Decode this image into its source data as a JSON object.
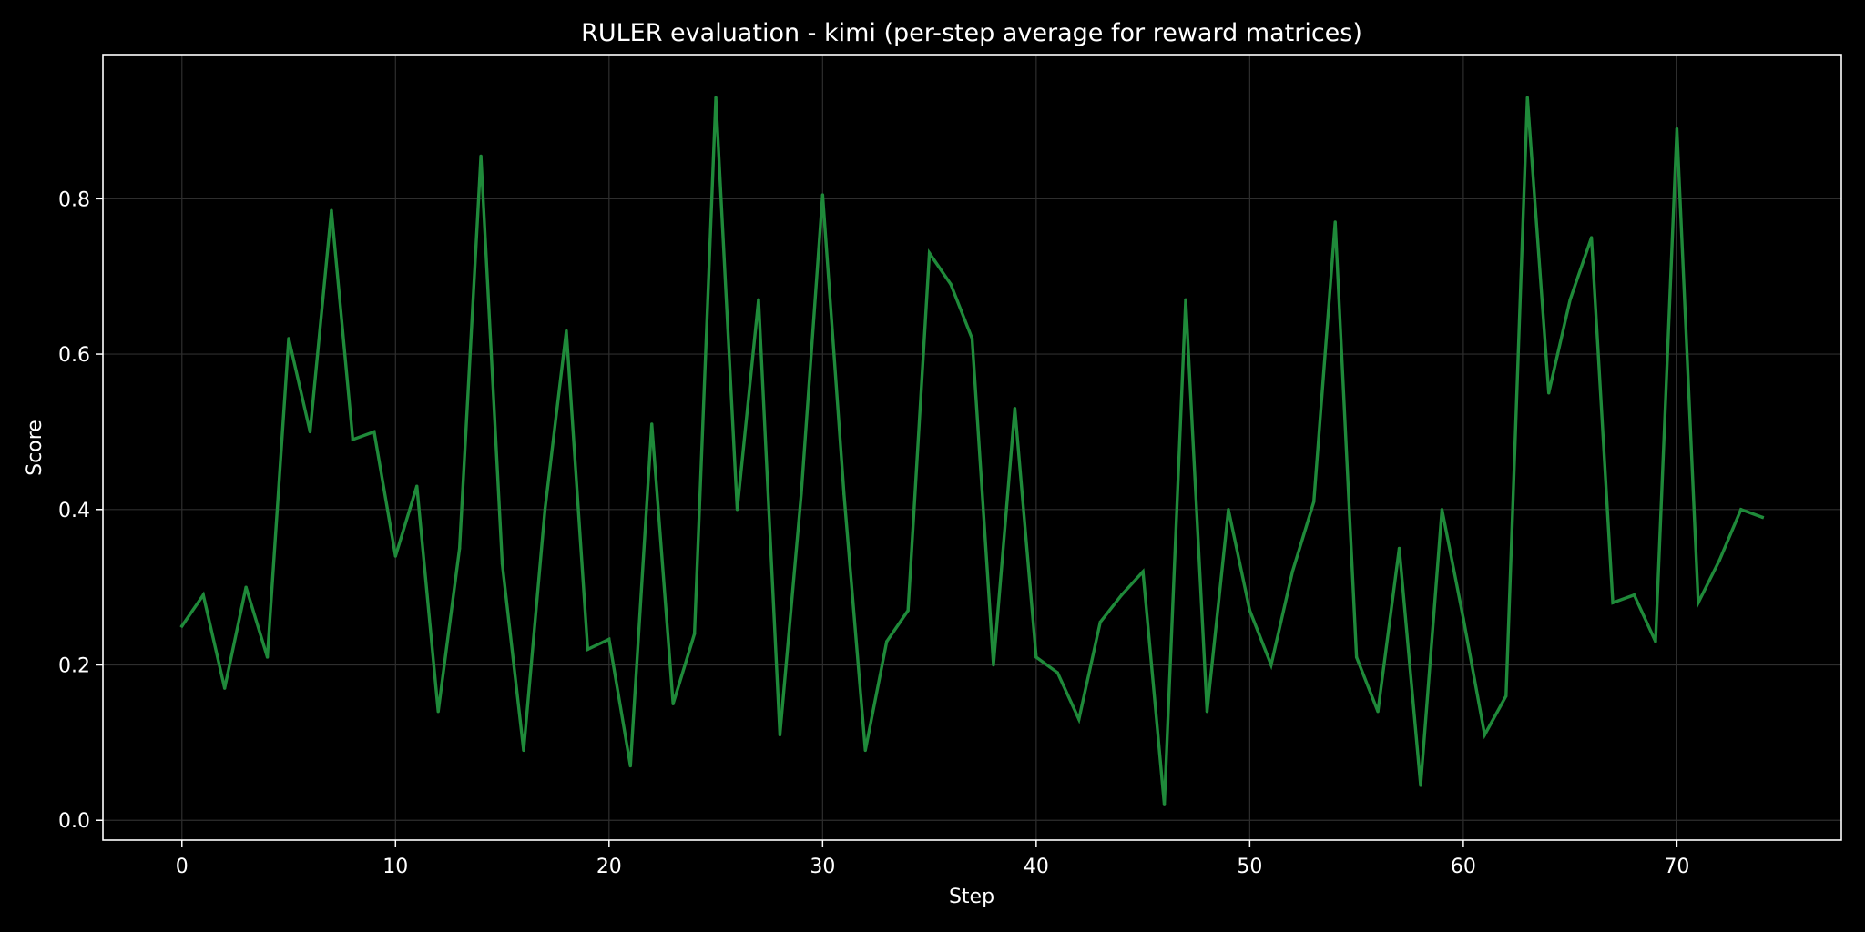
{
  "chart_data": {
    "type": "line",
    "title": "RULER evaluation - kimi (per-step average for reward matrices)",
    "xlabel": "Step",
    "ylabel": "Score",
    "xlim": [
      -3.7,
      77.7
    ],
    "ylim": [
      -0.0255,
      0.9855
    ],
    "xticks": [
      0,
      10,
      20,
      30,
      40,
      50,
      60,
      70
    ],
    "yticks": [
      0.0,
      0.2,
      0.4,
      0.6,
      0.8
    ],
    "ytick_labels": [
      "0.0",
      "0.2",
      "0.4",
      "0.6",
      "0.8"
    ],
    "grid": true,
    "legend": "none",
    "background_color": "#000000",
    "foreground_color": "#ffffff",
    "grid_color": "#2e2e2e",
    "series": [
      {
        "color": "#1f8a3a",
        "x": [
          0,
          1,
          2,
          3,
          4,
          5,
          6,
          7,
          8,
          9,
          10,
          11,
          12,
          13,
          14,
          15,
          16,
          17,
          18,
          19,
          20,
          21,
          22,
          23,
          24,
          25,
          26,
          27,
          28,
          29,
          30,
          31,
          32,
          33,
          34,
          35,
          36,
          37,
          38,
          39,
          40,
          41,
          42,
          43,
          44,
          45,
          46,
          47,
          48,
          49,
          50,
          51,
          52,
          53,
          54,
          55,
          56,
          57,
          58,
          59,
          60,
          61,
          62,
          63,
          64,
          65,
          66,
          67,
          68,
          69,
          70,
          71,
          72,
          73,
          74
        ],
        "y": [
          0.25,
          0.29,
          0.17,
          0.3,
          0.21,
          0.62,
          0.5,
          0.785,
          0.49,
          0.5,
          0.34,
          0.43,
          0.14,
          0.35,
          0.855,
          0.33,
          0.09,
          0.4,
          0.63,
          0.22,
          0.233,
          0.07,
          0.51,
          0.15,
          0.24,
          0.93,
          0.4,
          0.67,
          0.11,
          0.42,
          0.805,
          0.42,
          0.09,
          0.23,
          0.27,
          0.73,
          0.69,
          0.62,
          0.2,
          0.53,
          0.21,
          0.19,
          0.13,
          0.255,
          0.29,
          0.32,
          0.02,
          0.67,
          0.14,
          0.4,
          0.27,
          0.2,
          0.32,
          0.41,
          0.77,
          0.21,
          0.14,
          0.35,
          0.045,
          0.4,
          0.26,
          0.11,
          0.16,
          0.93,
          0.55,
          0.67,
          0.75,
          0.28,
          0.29,
          0.23,
          0.89,
          0.28,
          0.335,
          0.4,
          0.39
        ]
      }
    ]
  }
}
